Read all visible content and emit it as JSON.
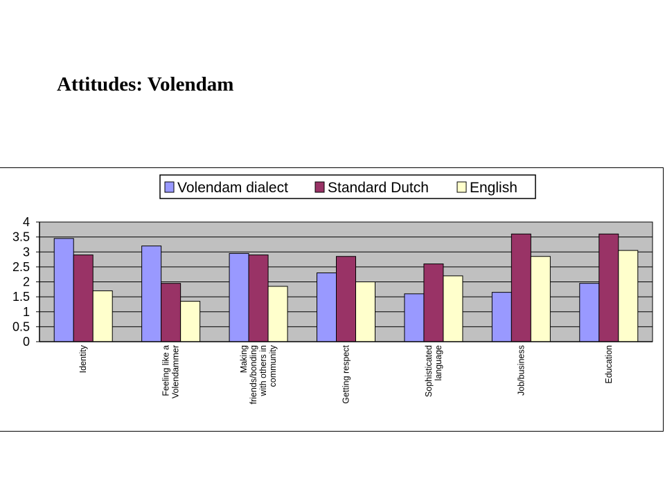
{
  "slide": {
    "title": "Attitudes: Volendam"
  },
  "chart_data": {
    "type": "bar",
    "categories": [
      [
        "Identity"
      ],
      [
        "Feeling like a",
        "Volendammer"
      ],
      [
        "Making",
        "friends/bonding",
        "with others in",
        "community"
      ],
      [
        "Getting respect"
      ],
      [
        "Sophisticated",
        "language"
      ],
      [
        "Job/business"
      ],
      [
        "Education"
      ]
    ],
    "series": [
      {
        "name": "Volendam dialect",
        "color": "#9999ff",
        "values": [
          3.45,
          3.2,
          2.95,
          2.3,
          1.6,
          1.65,
          1.95
        ]
      },
      {
        "name": "Standard Dutch",
        "color": "#993366",
        "values": [
          2.9,
          1.95,
          2.9,
          2.85,
          2.6,
          3.6,
          3.6
        ]
      },
      {
        "name": "English",
        "color": "#ffffcc",
        "values": [
          1.7,
          1.35,
          1.85,
          2.0,
          2.2,
          2.85,
          3.05
        ]
      }
    ],
    "ylim": [
      0,
      4
    ],
    "yticks": [
      "0",
      "0.5",
      "1",
      "1.5",
      "2",
      "2.5",
      "3",
      "3.5",
      "4"
    ],
    "plot_background": "#c0c0c0",
    "grid": true,
    "legend_position": "top"
  }
}
